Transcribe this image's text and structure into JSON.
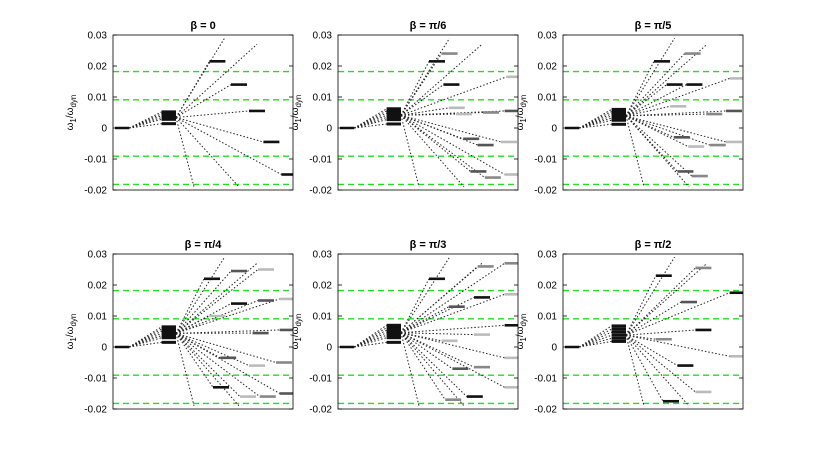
{
  "figure": {
    "ylabel_main": "ω",
    "ylabel_sub1": "1",
    "ylabel_slash": "/ω",
    "ylabel_sub2": "dyn",
    "ylim": [
      -0.02,
      0.03
    ],
    "yticks": [
      "0.03",
      "0.02",
      "0.01",
      "0",
      "-0.01",
      "-0.02"
    ],
    "ytick_values": [
      0.03,
      0.02,
      0.01,
      0,
      -0.01,
      -0.02
    ],
    "reference_lines": [
      0.0182,
      0.0091,
      -0.0091,
      -0.0182
    ],
    "colors": {
      "reference": "#22dd22",
      "dark": "#111111",
      "mid": "#555555",
      "gray": "#888888",
      "light": "#bbbbbb"
    }
  },
  "chart_data": [
    {
      "type": "line",
      "title": "β = 0",
      "origin_level": 0,
      "cluster": [
        0.0052,
        0.0046,
        0.004,
        0.0034,
        0.0028,
        0.0014
      ],
      "levels": [
        {
          "x": 0.58,
          "y": 0.0215,
          "shade": "dark"
        },
        {
          "x": 0.7,
          "y": 0.014,
          "shade": "dark"
        },
        {
          "x": 0.8,
          "y": 0.0055,
          "shade": "dark"
        },
        {
          "x": 0.88,
          "y": -0.0045,
          "shade": "dark"
        },
        {
          "x": 0.98,
          "y": -0.015,
          "shade": "dark"
        }
      ]
    },
    {
      "type": "line",
      "title": "β =  π/6",
      "origin_level": 0,
      "cluster": [
        0.0062,
        0.0055,
        0.0048,
        0.0041,
        0.0034,
        0.0027,
        0.0013
      ],
      "levels": [
        {
          "x": 0.55,
          "y": 0.0215,
          "shade": "dark"
        },
        {
          "x": 0.62,
          "y": 0.024,
          "shade": "gray"
        },
        {
          "x": 0.63,
          "y": 0.014,
          "shade": "dark"
        },
        {
          "x": 0.66,
          "y": 0.0065,
          "shade": "light"
        },
        {
          "x": 0.7,
          "y": 0.0045,
          "shade": "light"
        },
        {
          "x": 0.74,
          "y": -0.0035,
          "shade": "mid"
        },
        {
          "x": 0.82,
          "y": -0.0055,
          "shade": "mid"
        },
        {
          "x": 0.78,
          "y": -0.014,
          "shade": "mid"
        },
        {
          "x": 0.86,
          "y": -0.016,
          "shade": "gray"
        },
        {
          "x": 0.85,
          "y": 0.005,
          "shade": "gray"
        },
        {
          "x": 0.97,
          "y": 0.0055,
          "shade": "mid"
        },
        {
          "x": 0.95,
          "y": -0.0045,
          "shade": "light"
        },
        {
          "x": 0.97,
          "y": -0.015,
          "shade": "light"
        },
        {
          "x": 0.98,
          "y": 0.0165,
          "shade": "light"
        }
      ]
    },
    {
      "type": "line",
      "title": "β =  π/5",
      "origin_level": 0,
      "cluster": [
        0.006,
        0.0053,
        0.0046,
        0.0039,
        0.0032,
        0.0025,
        0.0012
      ],
      "levels": [
        {
          "x": 0.55,
          "y": 0.0215,
          "shade": "dark"
        },
        {
          "x": 0.72,
          "y": 0.024,
          "shade": "gray"
        },
        {
          "x": 0.62,
          "y": 0.014,
          "shade": "dark"
        },
        {
          "x": 0.64,
          "y": 0.007,
          "shade": "light"
        },
        {
          "x": 0.73,
          "y": 0.014,
          "shade": "dark"
        },
        {
          "x": 0.66,
          "y": -0.003,
          "shade": "mid"
        },
        {
          "x": 0.74,
          "y": -0.006,
          "shade": "light"
        },
        {
          "x": 0.68,
          "y": -0.014,
          "shade": "mid"
        },
        {
          "x": 0.76,
          "y": -0.0155,
          "shade": "gray"
        },
        {
          "x": 0.84,
          "y": 0.0045,
          "shade": "gray"
        },
        {
          "x": 0.95,
          "y": 0.0055,
          "shade": "mid"
        },
        {
          "x": 0.86,
          "y": -0.0055,
          "shade": "gray"
        },
        {
          "x": 0.95,
          "y": -0.0045,
          "shade": "light"
        },
        {
          "x": 0.97,
          "y": 0.016,
          "shade": "light"
        }
      ]
    },
    {
      "type": "line",
      "title": "β =  π/4",
      "origin_level": 0,
      "cluster": [
        0.0065,
        0.0058,
        0.0051,
        0.0044,
        0.0037,
        0.003,
        0.0015
      ],
      "levels": [
        {
          "x": 0.55,
          "y": 0.022,
          "shade": "dark"
        },
        {
          "x": 0.7,
          "y": 0.0245,
          "shade": "mid"
        },
        {
          "x": 0.85,
          "y": 0.025,
          "shade": "light"
        },
        {
          "x": 0.7,
          "y": 0.014,
          "shade": "dark"
        },
        {
          "x": 0.85,
          "y": 0.015,
          "shade": "mid"
        },
        {
          "x": 0.97,
          "y": 0.0155,
          "shade": "light"
        },
        {
          "x": 0.58,
          "y": 0.01,
          "shade": "light"
        },
        {
          "x": 0.82,
          "y": 0.0045,
          "shade": "mid"
        },
        {
          "x": 0.97,
          "y": 0.0055,
          "shade": "mid"
        },
        {
          "x": 0.64,
          "y": -0.0035,
          "shade": "mid"
        },
        {
          "x": 0.8,
          "y": -0.006,
          "shade": "light"
        },
        {
          "x": 0.95,
          "y": -0.005,
          "shade": "gray"
        },
        {
          "x": 0.6,
          "y": -0.013,
          "shade": "dark"
        },
        {
          "x": 0.75,
          "y": -0.016,
          "shade": "light"
        },
        {
          "x": 0.86,
          "y": -0.016,
          "shade": "gray"
        },
        {
          "x": 0.97,
          "y": -0.015,
          "shade": "mid"
        }
      ]
    },
    {
      "type": "line",
      "title": "β =  π/3",
      "origin_level": 0,
      "cluster": [
        0.007,
        0.0062,
        0.0054,
        0.0046,
        0.0038,
        0.003,
        0.0015
      ],
      "levels": [
        {
          "x": 0.55,
          "y": 0.022,
          "shade": "dark"
        },
        {
          "x": 0.82,
          "y": 0.026,
          "shade": "gray"
        },
        {
          "x": 0.97,
          "y": 0.027,
          "shade": "gray"
        },
        {
          "x": 0.66,
          "y": 0.013,
          "shade": "mid"
        },
        {
          "x": 0.8,
          "y": 0.016,
          "shade": "dark"
        },
        {
          "x": 0.97,
          "y": 0.017,
          "shade": "light"
        },
        {
          "x": 0.62,
          "y": 0.002,
          "shade": "light"
        },
        {
          "x": 0.8,
          "y": 0.004,
          "shade": "light"
        },
        {
          "x": 0.97,
          "y": 0.007,
          "shade": "dark"
        },
        {
          "x": 0.68,
          "y": -0.007,
          "shade": "mid"
        },
        {
          "x": 0.8,
          "y": -0.0065,
          "shade": "gray"
        },
        {
          "x": 0.97,
          "y": -0.0035,
          "shade": "light"
        },
        {
          "x": 0.64,
          "y": -0.017,
          "shade": "gray"
        },
        {
          "x": 0.76,
          "y": -0.016,
          "shade": "dark"
        },
        {
          "x": 0.97,
          "y": -0.013,
          "shade": "light"
        }
      ]
    },
    {
      "type": "line",
      "title": "β =  π/2",
      "origin_level": 0,
      "cluster": [
        0.0068,
        0.0058,
        0.0048,
        0.0038,
        0.0028,
        0.0018
      ],
      "levels": [
        {
          "x": 0.56,
          "y": 0.023,
          "shade": "dark"
        },
        {
          "x": 0.78,
          "y": 0.0255,
          "shade": "gray"
        },
        {
          "x": 0.97,
          "y": 0.0175,
          "shade": "dark"
        },
        {
          "x": 0.7,
          "y": 0.0145,
          "shade": "mid"
        },
        {
          "x": 0.78,
          "y": 0.0055,
          "shade": "dark"
        },
        {
          "x": 0.56,
          "y": 0.0025,
          "shade": "gray"
        },
        {
          "x": 0.97,
          "y": -0.003,
          "shade": "light"
        },
        {
          "x": 0.68,
          "y": -0.006,
          "shade": "dark"
        },
        {
          "x": 0.78,
          "y": -0.0145,
          "shade": "light"
        },
        {
          "x": 0.6,
          "y": -0.0175,
          "shade": "dark"
        }
      ]
    }
  ]
}
